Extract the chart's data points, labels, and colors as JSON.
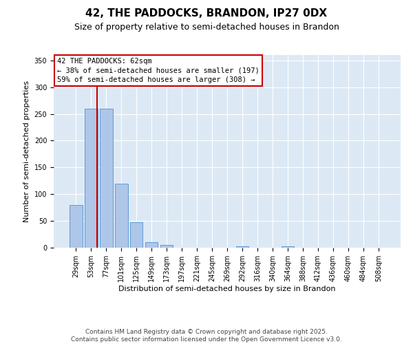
{
  "title": "42, THE PADDOCKS, BRANDON, IP27 0DX",
  "subtitle": "Size of property relative to semi-detached houses in Brandon",
  "xlabel": "Distribution of semi-detached houses by size in Brandon",
  "ylabel": "Number of semi-detached properties",
  "bar_labels": [
    "29sqm",
    "53sqm",
    "77sqm",
    "101sqm",
    "125sqm",
    "149sqm",
    "173sqm",
    "197sqm",
    "221sqm",
    "245sqm",
    "269sqm",
    "292sqm",
    "316sqm",
    "340sqm",
    "364sqm",
    "388sqm",
    "412sqm",
    "436sqm",
    "460sqm",
    "484sqm",
    "508sqm"
  ],
  "bar_values": [
    80,
    260,
    260,
    120,
    48,
    10,
    5,
    0,
    0,
    0,
    0,
    3,
    0,
    0,
    3,
    0,
    0,
    0,
    0,
    0,
    0
  ],
  "bar_color": "#aec6e8",
  "bar_edgecolor": "#5b9bd5",
  "background_color": "#dce9f5",
  "vline_color": "#cc0000",
  "annotation_text": "42 THE PADDOCKS: 62sqm\n← 38% of semi-detached houses are smaller (197)\n59% of semi-detached houses are larger (308) →",
  "annotation_box_edgecolor": "#cc0000",
  "ylim": [
    0,
    360
  ],
  "yticks": [
    0,
    50,
    100,
    150,
    200,
    250,
    300,
    350
  ],
  "footer_line1": "Contains HM Land Registry data © Crown copyright and database right 2025.",
  "footer_line2": "Contains public sector information licensed under the Open Government Licence v3.0.",
  "title_fontsize": 11,
  "subtitle_fontsize": 9,
  "axis_label_fontsize": 8,
  "tick_fontsize": 7,
  "annotation_fontsize": 7.5,
  "footer_fontsize": 6.5
}
